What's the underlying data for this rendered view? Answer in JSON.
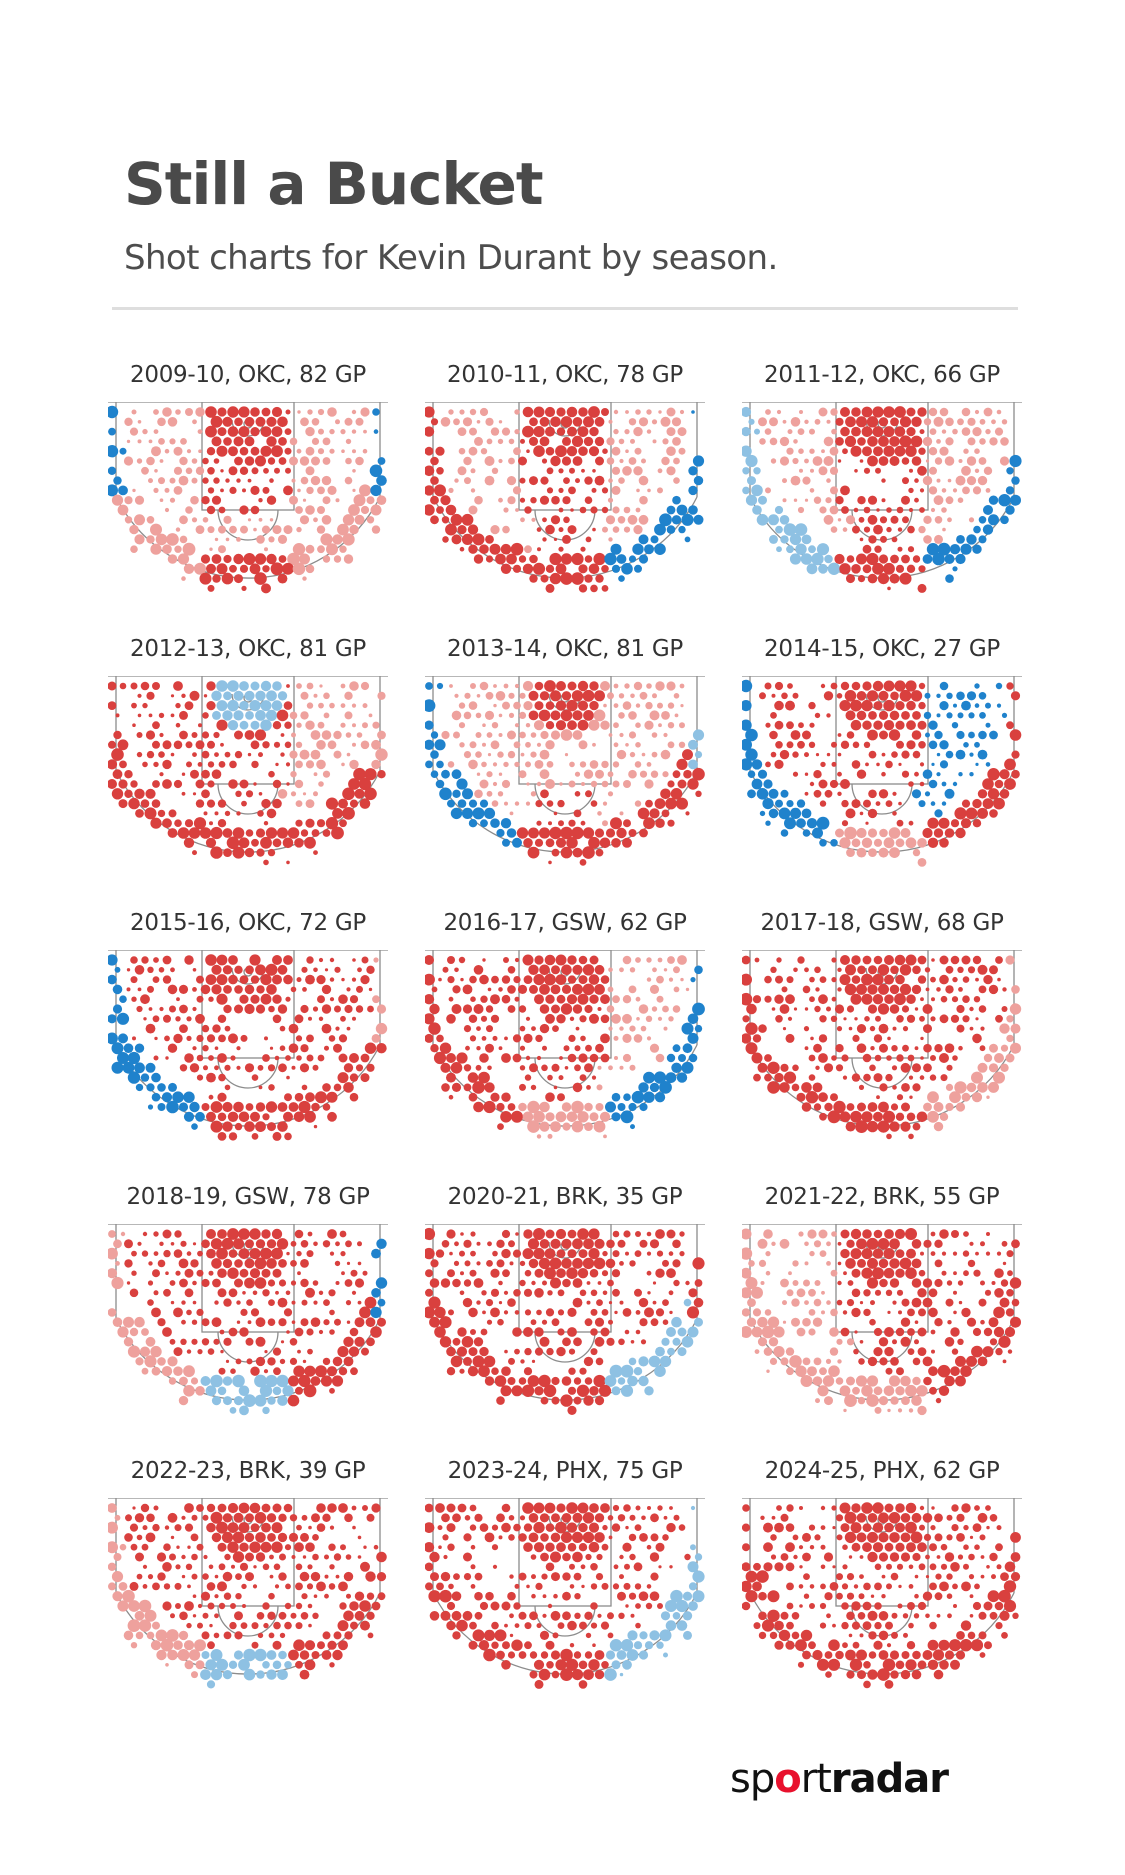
{
  "header": {
    "title": "Still a Bucket",
    "subtitle": "Shot charts for Kevin Durant by season."
  },
  "brand": {
    "pre": "sp",
    "o": "o",
    "mid": "rt",
    "post": "radar"
  },
  "colors": {
    "hot": "#d9403e",
    "warm": "#eea19d",
    "cool": "#8ec1e3",
    "cold": "#1f82cc",
    "court_line": "#8c8c8c",
    "brand_red": "#e8112d"
  },
  "chart_data": [
    {
      "type": "heatmap",
      "label": "2009-10, OKC, 82 GP",
      "season": "2009-10",
      "team": "OKC",
      "games_played": 82,
      "zones": {
        "restricted": "hot",
        "paint": "hot",
        "midrange_left": "warm",
        "midrange_center": "warm",
        "midrange_right": "warm",
        "corner3_left": "cold",
        "wing3_left": "warm",
        "top3": "hot",
        "wing3_right": "warm",
        "corner3_right": "cold"
      }
    },
    {
      "type": "heatmap",
      "label": "2010-11, OKC, 78 GP",
      "season": "2010-11",
      "team": "OKC",
      "games_played": 78,
      "zones": {
        "restricted": "hot",
        "paint": "hot",
        "midrange_left": "warm",
        "midrange_center": "hot",
        "midrange_right": "warm",
        "corner3_left": "hot",
        "wing3_left": "hot",
        "top3": "hot",
        "wing3_right": "cold",
        "corner3_right": "cold"
      }
    },
    {
      "type": "heatmap",
      "label": "2011-12, OKC, 66 GP",
      "season": "2011-12",
      "team": "OKC",
      "games_played": 66,
      "zones": {
        "restricted": "hot",
        "paint": "hot",
        "midrange_left": "warm",
        "midrange_center": "hot",
        "midrange_right": "warm",
        "corner3_left": "cool",
        "wing3_left": "cool",
        "top3": "hot",
        "wing3_right": "cold",
        "corner3_right": "cold"
      }
    },
    {
      "type": "heatmap",
      "label": "2012-13, OKC, 81 GP",
      "season": "2012-13",
      "team": "OKC",
      "games_played": 81,
      "zones": {
        "restricted": "cool",
        "paint": "hot",
        "midrange_left": "hot",
        "midrange_center": "hot",
        "midrange_right": "warm",
        "corner3_left": "hot",
        "wing3_left": "hot",
        "top3": "hot",
        "wing3_right": "hot",
        "corner3_right": "warm"
      }
    },
    {
      "type": "heatmap",
      "label": "2013-14, OKC, 81 GP",
      "season": "2013-14",
      "team": "OKC",
      "games_played": 81,
      "zones": {
        "restricted": "hot",
        "paint": "warm",
        "midrange_left": "warm",
        "midrange_center": "hot",
        "midrange_right": "warm",
        "corner3_left": "cold",
        "wing3_left": "cold",
        "top3": "hot",
        "wing3_right": "hot",
        "corner3_right": "cool"
      }
    },
    {
      "type": "heatmap",
      "label": "2014-15, OKC, 27 GP",
      "season": "2014-15",
      "team": "OKC",
      "games_played": 27,
      "zones": {
        "restricted": "hot",
        "paint": "hot",
        "midrange_left": "hot",
        "midrange_center": "hot",
        "midrange_right": "cold",
        "corner3_left": "cold",
        "wing3_left": "cold",
        "top3": "warm",
        "wing3_right": "hot",
        "corner3_right": "hot"
      }
    },
    {
      "type": "heatmap",
      "label": "2015-16, OKC, 72 GP",
      "season": "2015-16",
      "team": "OKC",
      "games_played": 72,
      "zones": {
        "restricted": "hot",
        "paint": "hot",
        "midrange_left": "hot",
        "midrange_center": "hot",
        "midrange_right": "hot",
        "corner3_left": "cold",
        "wing3_left": "cold",
        "top3": "hot",
        "wing3_right": "hot",
        "corner3_right": "warm"
      }
    },
    {
      "type": "heatmap",
      "label": "2016-17, GSW, 62 GP",
      "season": "2016-17",
      "team": "GSW",
      "games_played": 62,
      "zones": {
        "restricted": "hot",
        "paint": "hot",
        "midrange_left": "hot",
        "midrange_center": "hot",
        "midrange_right": "warm",
        "corner3_left": "hot",
        "wing3_left": "hot",
        "top3": "warm",
        "wing3_right": "cold",
        "corner3_right": "cold"
      }
    },
    {
      "type": "heatmap",
      "label": "2017-18, GSW, 68 GP",
      "season": "2017-18",
      "team": "GSW",
      "games_played": 68,
      "zones": {
        "restricted": "hot",
        "paint": "hot",
        "midrange_left": "hot",
        "midrange_center": "hot",
        "midrange_right": "hot",
        "corner3_left": "hot",
        "wing3_left": "hot",
        "top3": "hot",
        "wing3_right": "warm",
        "corner3_right": "warm"
      }
    },
    {
      "type": "heatmap",
      "label": "2018-19, GSW, 78 GP",
      "season": "2018-19",
      "team": "GSW",
      "games_played": 78,
      "zones": {
        "restricted": "hot",
        "paint": "hot",
        "midrange_left": "hot",
        "midrange_center": "hot",
        "midrange_right": "hot",
        "corner3_left": "warm",
        "wing3_left": "warm",
        "top3": "cool",
        "wing3_right": "hot",
        "corner3_right": "cold"
      }
    },
    {
      "type": "heatmap",
      "label": "2020-21, BRK, 35 GP",
      "season": "2020-21",
      "team": "BRK",
      "games_played": 35,
      "zones": {
        "restricted": "hot",
        "paint": "hot",
        "midrange_left": "hot",
        "midrange_center": "hot",
        "midrange_right": "hot",
        "corner3_left": "hot",
        "wing3_left": "hot",
        "top3": "hot",
        "wing3_right": "cool",
        "corner3_right": "hot"
      }
    },
    {
      "type": "heatmap",
      "label": "2021-22, BRK, 55 GP",
      "season": "2021-22",
      "team": "BRK",
      "games_played": 55,
      "zones": {
        "restricted": "hot",
        "paint": "hot",
        "midrange_left": "warm",
        "midrange_center": "hot",
        "midrange_right": "hot",
        "corner3_left": "warm",
        "wing3_left": "warm",
        "top3": "warm",
        "wing3_right": "hot",
        "corner3_right": "hot"
      }
    },
    {
      "type": "heatmap",
      "label": "2022-23, BRK, 39 GP",
      "season": "2022-23",
      "team": "BRK",
      "games_played": 39,
      "zones": {
        "restricted": "hot",
        "paint": "hot",
        "midrange_left": "hot",
        "midrange_center": "hot",
        "midrange_right": "hot",
        "corner3_left": "warm",
        "wing3_left": "warm",
        "top3": "cool",
        "wing3_right": "hot",
        "corner3_right": "hot"
      }
    },
    {
      "type": "heatmap",
      "label": "2023-24, PHX, 75 GP",
      "season": "2023-24",
      "team": "PHX",
      "games_played": 75,
      "zones": {
        "restricted": "hot",
        "paint": "hot",
        "midrange_left": "hot",
        "midrange_center": "hot",
        "midrange_right": "hot",
        "corner3_left": "hot",
        "wing3_left": "hot",
        "top3": "hot",
        "wing3_right": "cool",
        "corner3_right": "cool"
      }
    },
    {
      "type": "heatmap",
      "label": "2024-25, PHX, 62 GP",
      "season": "2024-25",
      "team": "PHX",
      "games_played": 62,
      "zones": {
        "restricted": "hot",
        "paint": "hot",
        "midrange_left": "hot",
        "midrange_center": "hot",
        "midrange_right": "hot",
        "corner3_left": "hot",
        "wing3_left": "hot",
        "top3": "hot",
        "wing3_right": "hot",
        "corner3_right": "hot"
      }
    }
  ]
}
